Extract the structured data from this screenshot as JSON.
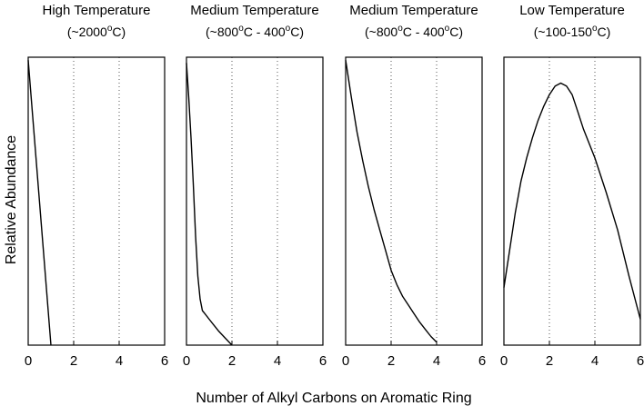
{
  "figure": {
    "ylabel": "Relative Abundance",
    "xlabel": "Number of Alkyl Carbons on Aromatic Ring"
  },
  "chart_data": [
    {
      "type": "line",
      "title": "High Temperature",
      "subtitle": [
        "(~2000",
        "o",
        "C)"
      ],
      "x_ticks": [
        "0",
        "2",
        "4",
        "6"
      ],
      "xlim": [
        0,
        6
      ],
      "grid": "vertical dotted at x=2 and x=4",
      "series": [
        {
          "x": [
            0,
            1
          ],
          "y": [
            0.99,
            0.0
          ]
        }
      ]
    },
    {
      "type": "line",
      "title": "Medium Temperature",
      "subtitle": [
        "(~800",
        "o",
        "C - 400",
        "o",
        "C)"
      ],
      "x_ticks": [
        "0",
        "2",
        "4",
        "6"
      ],
      "xlim": [
        0,
        6
      ],
      "grid": "vertical dotted at x=2 and x=4",
      "series": [
        {
          "x": [
            0,
            0.1,
            0.2,
            0.3,
            0.4,
            0.5,
            0.6,
            0.7,
            0.8,
            1.0,
            1.2,
            1.4,
            1.7,
            2.0
          ],
          "y": [
            0.98,
            0.86,
            0.72,
            0.56,
            0.38,
            0.24,
            0.16,
            0.12,
            0.11,
            0.09,
            0.07,
            0.05,
            0.025,
            0.0
          ]
        }
      ]
    },
    {
      "type": "line",
      "title": "Medium Temperature",
      "subtitle": [
        "(~800",
        "o",
        "C - 400",
        "o",
        "C)"
      ],
      "x_ticks": [
        "0",
        "2",
        "4",
        "6"
      ],
      "xlim": [
        0,
        6
      ],
      "grid": "vertical dotted at x=2 and x=4",
      "series": [
        {
          "x": [
            0,
            0.25,
            0.5,
            0.75,
            1.0,
            1.25,
            1.5,
            1.75,
            2.0,
            2.25,
            2.5,
            2.75,
            3.0,
            3.25,
            3.5,
            3.75,
            4.0
          ],
          "y": [
            0.99,
            0.86,
            0.74,
            0.64,
            0.55,
            0.47,
            0.4,
            0.33,
            0.26,
            0.21,
            0.17,
            0.14,
            0.11,
            0.08,
            0.055,
            0.03,
            0.01
          ]
        }
      ]
    },
    {
      "type": "line",
      "title": "Low Temperature",
      "subtitle": [
        "(~100-150",
        "o",
        "C)"
      ],
      "x_ticks": [
        "0",
        "2",
        "4",
        "6"
      ],
      "xlim": [
        0,
        6
      ],
      "grid": "vertical dotted at x=2 and x=4",
      "series": [
        {
          "x": [
            0,
            0.25,
            0.5,
            0.75,
            1.0,
            1.25,
            1.5,
            1.75,
            2.0,
            2.25,
            2.5,
            2.75,
            3.0,
            3.25,
            3.5,
            4.0,
            4.5,
            5.0,
            5.5,
            6.0
          ],
          "y": [
            0.2,
            0.33,
            0.46,
            0.57,
            0.65,
            0.72,
            0.78,
            0.83,
            0.87,
            0.9,
            0.91,
            0.9,
            0.87,
            0.81,
            0.75,
            0.65,
            0.53,
            0.4,
            0.24,
            0.09
          ]
        }
      ]
    }
  ]
}
